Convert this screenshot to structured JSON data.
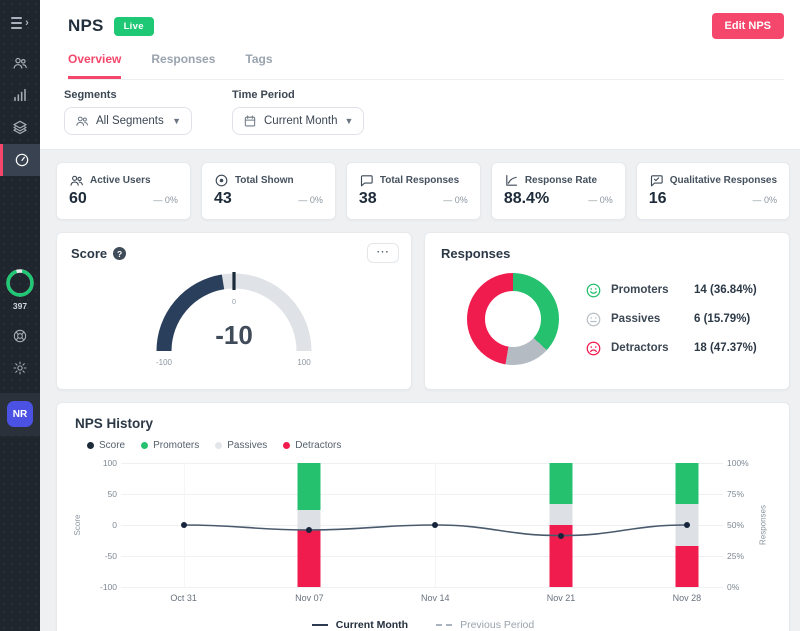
{
  "colors": {
    "accent_pink": "#f5476b",
    "live_green": "#1fc874",
    "promoter_green": "#25c16f",
    "detractor_red": "#f11c4e",
    "passive_gray_donut": "#b4bbc3",
    "passive_gray_bar": "#dde0e5",
    "gauge_navy": "#2a3f5c",
    "score_line": "#4a5a6d",
    "sidebar_bg": "#20262d",
    "avatar_indigo": "#4b51e3"
  },
  "sidebar": {
    "ring_label": "397",
    "avatar_initials": "NR",
    "nav_icons": [
      "users-icon",
      "bar-chart-icon",
      "layers-icon",
      "gauge-icon"
    ],
    "active_nav": "gauge-icon"
  },
  "header": {
    "title": "NPS",
    "status_badge": "Live",
    "edit_button": "Edit NPS"
  },
  "tabs": [
    {
      "label": "Overview",
      "active": true
    },
    {
      "label": "Responses",
      "active": false
    },
    {
      "label": "Tags",
      "active": false
    }
  ],
  "filters": {
    "segments": {
      "label": "Segments",
      "value": "All Segments",
      "icon": "group-icon"
    },
    "time_period": {
      "label": "Time Period",
      "value": "Current Month",
      "icon": "calendar-icon"
    }
  },
  "stats": [
    {
      "icon": "group-icon",
      "label": "Active Users",
      "value": "60",
      "change": "— 0%"
    },
    {
      "icon": "eye-icon",
      "label": "Total Shown",
      "value": "43",
      "change": "— 0%"
    },
    {
      "icon": "chat-icon",
      "label": "Total Responses",
      "value": "38",
      "change": "— 0%"
    },
    {
      "icon": "chart-axis-icon",
      "label": "Response Rate",
      "value": "88.4%",
      "change": "— 0%"
    },
    {
      "icon": "chat-check-icon",
      "label": "Qualitative Responses",
      "value": "16",
      "change": "— 0%"
    }
  ],
  "score_card": {
    "title": "Score",
    "menu_button": "⋯"
  },
  "responses_card": {
    "title": "Responses",
    "legend": [
      {
        "icon": "smiley-happy-icon",
        "color": "#25c16f",
        "name": "Promoters",
        "value": "14 (36.84%)"
      },
      {
        "icon": "smiley-neutral-icon",
        "color": "#b9c0c7",
        "name": "Passives",
        "value": "6 (15.79%)"
      },
      {
        "icon": "smiley-sad-icon",
        "color": "#f11c4e",
        "name": "Detractors",
        "value": "18 (47.37%)"
      }
    ]
  },
  "history_card": {
    "title": "NPS History"
  },
  "chart_data": [
    {
      "id": "nps-score-gauge",
      "type": "gauge",
      "title": "Score",
      "value": -10,
      "min": -100,
      "max": 100,
      "zero_tick": 0,
      "end_labels": [
        "-100",
        "100"
      ],
      "zero_label": "0",
      "fill_color": "#2a3f5c",
      "track_color": "#dfe2e6"
    },
    {
      "id": "responses-donut",
      "type": "pie",
      "title": "Responses",
      "segments": [
        {
          "label": "Promoters",
          "count": 14,
          "pct": 36.84,
          "color": "#25c16f"
        },
        {
          "label": "Passives",
          "count": 6,
          "pct": 15.79,
          "color": "#b4bbc3"
        },
        {
          "label": "Detractors",
          "count": 18,
          "pct": 47.37,
          "color": "#f11c4e"
        }
      ],
      "start": "top",
      "direction": "clockwise"
    },
    {
      "id": "nps-history",
      "type": "composed",
      "title": "NPS History",
      "x": [
        "Oct 31",
        "Nov 07",
        "Nov 14",
        "Nov 21",
        "Nov 28"
      ],
      "line_series": {
        "name": "Score",
        "values": [
          0,
          -8,
          0,
          -17,
          0
        ],
        "color": "#4a5a6d",
        "dot_color": "#16253b",
        "axis": "left"
      },
      "bar_series": [
        {
          "name": "Promoters",
          "color": "#25c16f",
          "values": [
            null,
            38,
            null,
            33,
            33
          ]
        },
        {
          "name": "Passives",
          "color": "#dde0e5",
          "values": [
            null,
            16,
            null,
            17,
            34
          ]
        },
        {
          "name": "Detractors",
          "color": "#f11c4e",
          "values": [
            null,
            46,
            null,
            50,
            33
          ]
        }
      ],
      "left_axis": {
        "label": "Score",
        "ticks": [
          "100",
          "50",
          "0",
          "-50",
          "-100"
        ],
        "range": [
          -100,
          100
        ]
      },
      "right_axis": {
        "label": "Responses",
        "ticks": [
          "100%",
          "75%",
          "50%",
          "25%",
          "0%"
        ],
        "range": [
          0,
          100
        ]
      },
      "grid": true,
      "legend": [
        {
          "label": "Score",
          "color": "#1c2b3a"
        },
        {
          "label": "Promoters",
          "color": "#25c16f"
        },
        {
          "label": "Passives",
          "color": "#e3e6ea"
        },
        {
          "label": "Detractors",
          "color": "#f11c4e"
        }
      ],
      "footer_legend": [
        {
          "label": "Current Month",
          "style": "solid"
        },
        {
          "label": "Previous Period",
          "style": "dashed"
        }
      ]
    }
  ]
}
